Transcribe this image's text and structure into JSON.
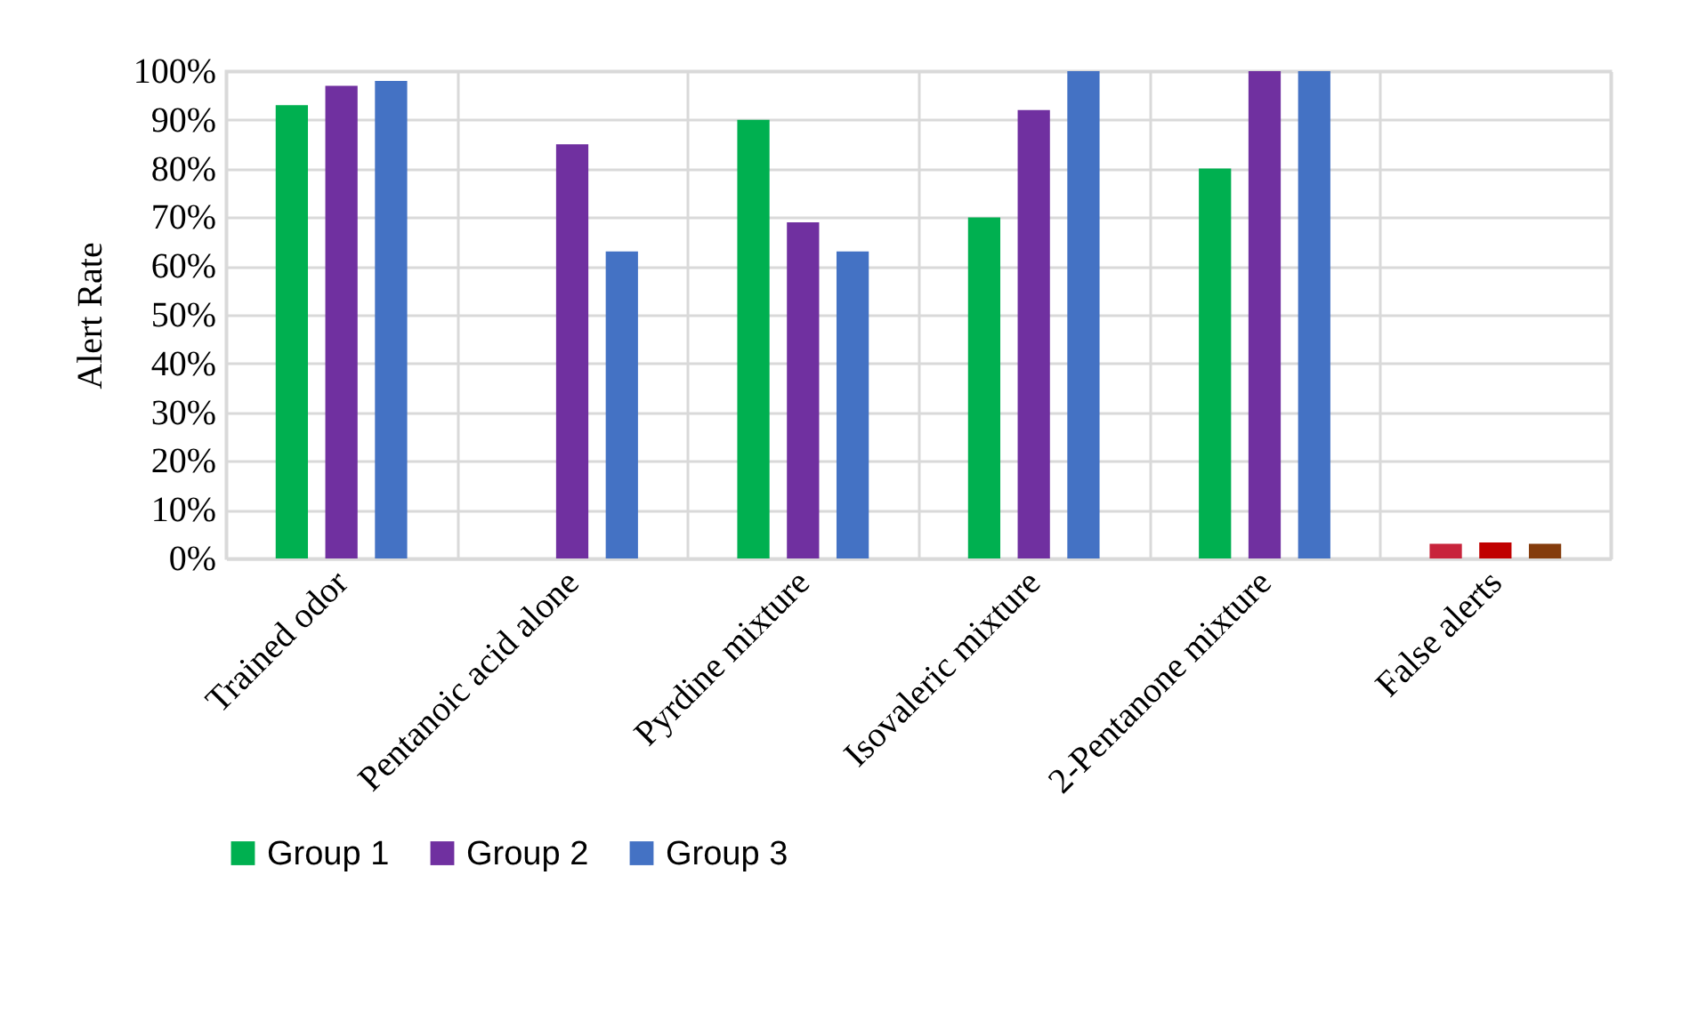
{
  "chart_data": {
    "type": "bar",
    "ylabel": "Alert Rate",
    "categories": [
      "Trained odor",
      "Pentanoic acid alone",
      "Pyrdine mixture",
      "Isovaleric mixture",
      "2-Pentanone mixture",
      "False alerts"
    ],
    "series": [
      {
        "name": "Group 1",
        "color": "#00b050",
        "colors": [
          "#00b050",
          "#00b050",
          "#00b050",
          "#00b050",
          "#00b050",
          "#c8243c"
        ],
        "values": [
          93,
          null,
          90,
          70,
          80,
          3
        ]
      },
      {
        "name": "Group 2",
        "color": "#7030a0",
        "colors": [
          "#7030a0",
          "#7030a0",
          "#7030a0",
          "#7030a0",
          "#7030a0",
          "#c00000"
        ],
        "values": [
          97,
          85,
          69,
          92,
          100,
          3.3
        ]
      },
      {
        "name": "Group 3",
        "color": "#4472c4",
        "colors": [
          "#4472c4",
          "#4472c4",
          "#4472c4",
          "#4472c4",
          "#4472c4",
          "#843c0c"
        ],
        "values": [
          98,
          63,
          63,
          100,
          100,
          3
        ]
      }
    ],
    "ylim": [
      0,
      100
    ],
    "yticks": [
      {
        "value": 0,
        "label": "0%"
      },
      {
        "value": 10,
        "label": "10%"
      },
      {
        "value": 20,
        "label": "20%"
      },
      {
        "value": 30,
        "label": "30%"
      },
      {
        "value": 40,
        "label": "40%"
      },
      {
        "value": 50,
        "label": "50%"
      },
      {
        "value": 60,
        "label": "60%"
      },
      {
        "value": 70,
        "label": "70%"
      },
      {
        "value": 80,
        "label": "80%"
      },
      {
        "value": 90,
        "label": "90%"
      },
      {
        "value": 100,
        "label": "100%"
      }
    ],
    "grid": true,
    "legend": "bottom"
  }
}
